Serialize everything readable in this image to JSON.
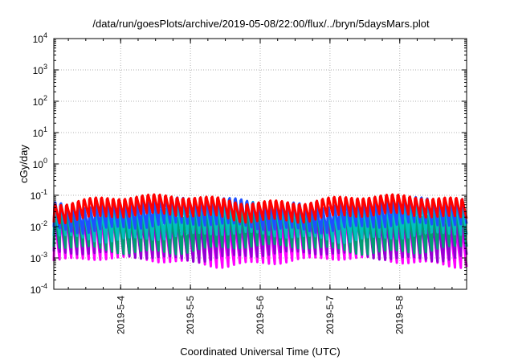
{
  "chart_data": {
    "type": "area",
    "title": "/data/run/goesPlots/archive/2019-05-08/22:00/flux/../bryn/5daysMars.plot",
    "xlabel": "Coordinated Universal Time (UTC)",
    "ylabel": "cGy/day",
    "yscale": "log",
    "ylim": [
      0.0001,
      10000
    ],
    "xlim": [
      "2019-05-03 01:00",
      "2019-05-08 23:00"
    ],
    "grid": true,
    "legend": "none",
    "x_ticks": [
      "2019-5-4",
      "2019-5-5",
      "2019-5-6",
      "2019-5-7",
      "2019-5-8"
    ],
    "y_ticks": [
      {
        "base": "10",
        "exp": "-4"
      },
      {
        "base": "10",
        "exp": "-3"
      },
      {
        "base": "10",
        "exp": "-2"
      },
      {
        "base": "10",
        "exp": "-1"
      },
      {
        "base": "10",
        "exp": "0"
      },
      {
        "base": "10",
        "exp": "1"
      },
      {
        "base": "10",
        "exp": "2"
      },
      {
        "base": "10",
        "exp": "3"
      },
      {
        "base": "10",
        "exp": "4"
      }
    ],
    "oscillation_period_hours": 2,
    "series": [
      {
        "color": "#ff00ff",
        "peak": 0.02,
        "trough": 0.0008
      },
      {
        "color": "#9400d3",
        "peak": 0.025,
        "trough": 0.0012
      },
      {
        "color": "#009e73",
        "peak": 0.04,
        "trough": 0.002
      },
      {
        "color": "#00bfbf",
        "peak": 0.06,
        "trough": 0.005
      },
      {
        "color": "#1e50ff",
        "peak": 0.08,
        "trough": 0.01
      },
      {
        "color": "#ff0000",
        "peak": 0.09,
        "trough": 0.02
      }
    ]
  }
}
